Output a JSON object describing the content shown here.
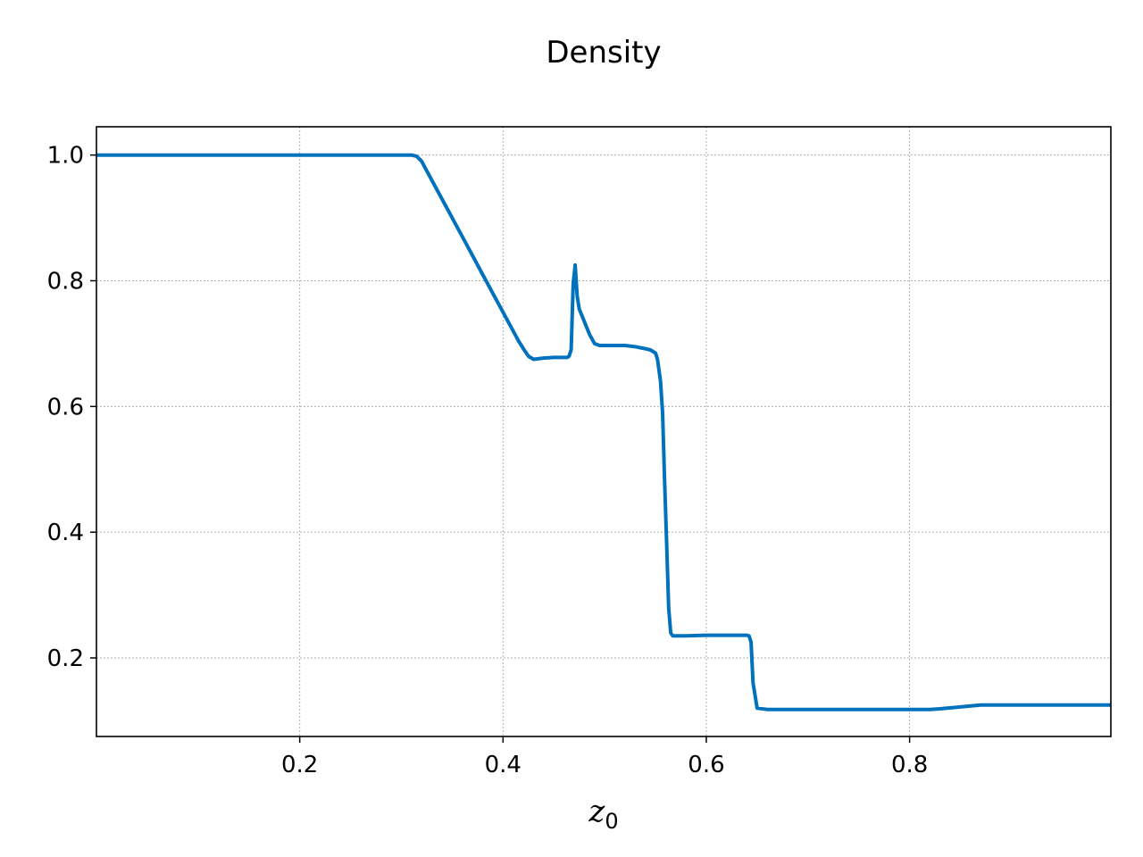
{
  "chart_data": {
    "type": "line",
    "title": "Density",
    "xlabel": "z",
    "xlabel_subscript": "0",
    "ylabel": "",
    "xlim": [
      0.0,
      0.998
    ],
    "ylim": [
      0.075,
      1.045
    ],
    "xticks": [
      0.2,
      0.4,
      0.6,
      0.8
    ],
    "xtick_labels": [
      "0.2",
      "0.4",
      "0.6",
      "0.8"
    ],
    "yticks": [
      0.2,
      0.4,
      0.6,
      0.8,
      1.0
    ],
    "ytick_labels": [
      "0.2",
      "0.4",
      "0.6",
      "0.8",
      "1.0"
    ],
    "grid": true,
    "legend": "none",
    "series": [
      {
        "color": "#0072BD",
        "x": [
          0.0,
          0.05,
          0.1,
          0.15,
          0.2,
          0.25,
          0.3,
          0.31,
          0.315,
          0.32,
          0.325,
          0.33,
          0.34,
          0.35,
          0.36,
          0.37,
          0.38,
          0.39,
          0.4,
          0.41,
          0.415,
          0.42,
          0.425,
          0.43,
          0.44,
          0.45,
          0.46,
          0.463,
          0.465,
          0.467,
          0.469,
          0.471,
          0.473,
          0.475,
          0.48,
          0.485,
          0.49,
          0.495,
          0.5,
          0.51,
          0.52,
          0.53,
          0.54,
          0.545,
          0.55,
          0.552,
          0.555,
          0.557,
          0.559,
          0.561,
          0.563,
          0.565,
          0.567,
          0.57,
          0.58,
          0.6,
          0.62,
          0.64,
          0.642,
          0.644,
          0.646,
          0.65,
          0.66,
          0.7,
          0.75,
          0.8,
          0.82,
          0.83,
          0.85,
          0.87,
          0.9,
          0.95,
          0.998
        ],
        "y": [
          1.0,
          1.0,
          1.0,
          1.0,
          1.0,
          1.0,
          1.0,
          1.0,
          0.998,
          0.99,
          0.975,
          0.96,
          0.93,
          0.9,
          0.87,
          0.84,
          0.81,
          0.78,
          0.75,
          0.72,
          0.705,
          0.692,
          0.68,
          0.675,
          0.677,
          0.678,
          0.678,
          0.678,
          0.68,
          0.69,
          0.795,
          0.825,
          0.775,
          0.755,
          0.735,
          0.715,
          0.7,
          0.697,
          0.697,
          0.697,
          0.697,
          0.695,
          0.692,
          0.69,
          0.685,
          0.675,
          0.64,
          0.59,
          0.48,
          0.38,
          0.28,
          0.24,
          0.235,
          0.235,
          0.235,
          0.236,
          0.236,
          0.236,
          0.235,
          0.225,
          0.16,
          0.12,
          0.118,
          0.118,
          0.118,
          0.118,
          0.118,
          0.119,
          0.122,
          0.125,
          0.125,
          0.125,
          0.125
        ]
      }
    ]
  }
}
